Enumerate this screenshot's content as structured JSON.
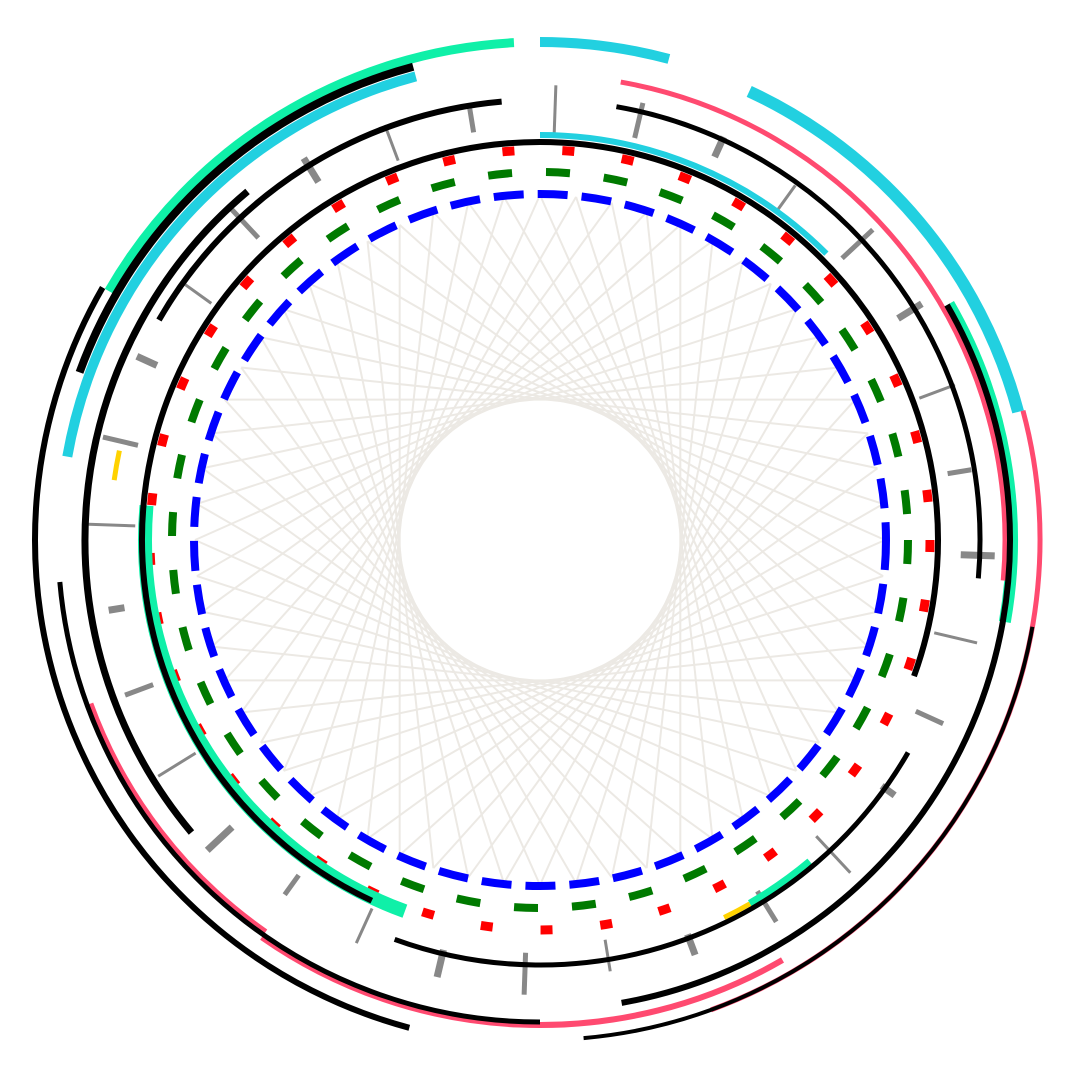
{
  "colors": {
    "background": "#ffffff",
    "web": "#ece9e4",
    "black": "#000000",
    "gray": "#888888",
    "cyan": "#22d0e0",
    "mint": "#0ff0a8",
    "pink": "#ff4a70",
    "yellow": "#ffd200",
    "red": "#ff0000",
    "green": "#007a00",
    "blue": "#0000ff"
  },
  "dashed_rings": [
    {
      "name": "blue-dashed-ring",
      "color": "blue"
    },
    {
      "name": "green-dashed-ring",
      "color": "green"
    },
    {
      "name": "red-dashed-ring",
      "color": "red"
    }
  ],
  "tick_ring": {
    "name": "gray-tick-ring",
    "color": "gray",
    "count": 32
  },
  "arc_tracks": [
    {
      "name": "mint-arc",
      "color": "mint"
    },
    {
      "name": "cyan-arc",
      "color": "cyan"
    },
    {
      "name": "pink-arc",
      "color": "pink"
    },
    {
      "name": "black-arc",
      "color": "black"
    },
    {
      "name": "yellow-mark",
      "color": "yellow"
    }
  ]
}
